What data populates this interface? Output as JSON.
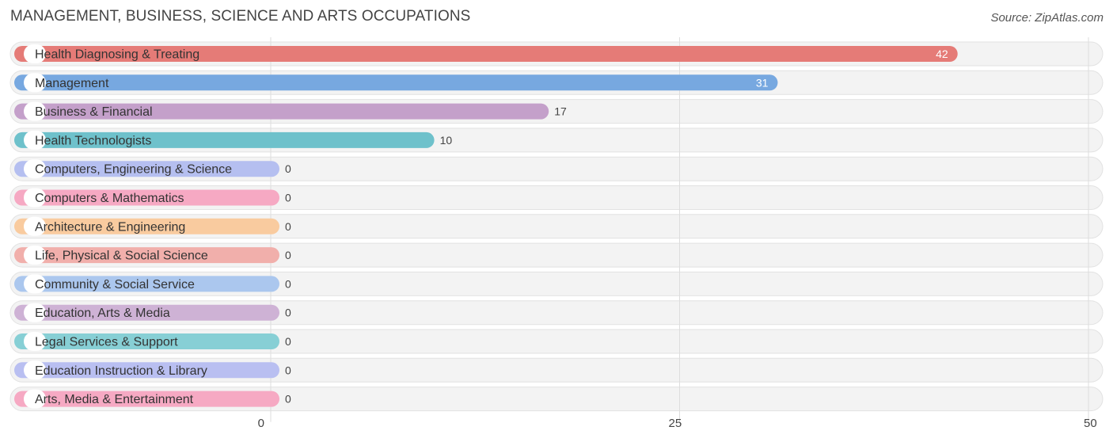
{
  "header": {
    "title": "MANAGEMENT, BUSINESS, SCIENCE AND ARTS OCCUPATIONS",
    "source": "Source: ZipAtlas.com"
  },
  "chart_data": {
    "type": "bar",
    "orientation": "horizontal",
    "title": "MANAGEMENT, BUSINESS, SCIENCE AND ARTS OCCUPATIONS",
    "xlabel": "",
    "ylabel": "",
    "xlim": [
      0,
      50
    ],
    "ticks": [
      0,
      25,
      50
    ],
    "grid": true,
    "categories": [
      "Health Diagnosing & Treating",
      "Management",
      "Business & Financial",
      "Health Technologists",
      "Computers, Engineering & Science",
      "Computers & Mathematics",
      "Architecture & Engineering",
      "Life, Physical & Social Science",
      "Community & Social Service",
      "Education, Arts & Media",
      "Legal Services & Support",
      "Education Instruction & Library",
      "Arts, Media & Entertainment"
    ],
    "values": [
      42,
      31,
      17,
      10,
      0,
      0,
      0,
      0,
      0,
      0,
      0,
      0,
      0
    ],
    "colors": [
      "#e57b77",
      "#77a8e0",
      "#c4a0ca",
      "#6ec1cb",
      "#b5bff0",
      "#f6a9c3",
      "#f9cb9f",
      "#f1afab",
      "#abc7ee",
      "#ceb2d5",
      "#87cfd5",
      "#b9bff1",
      "#f6a9c3"
    ]
  }
}
